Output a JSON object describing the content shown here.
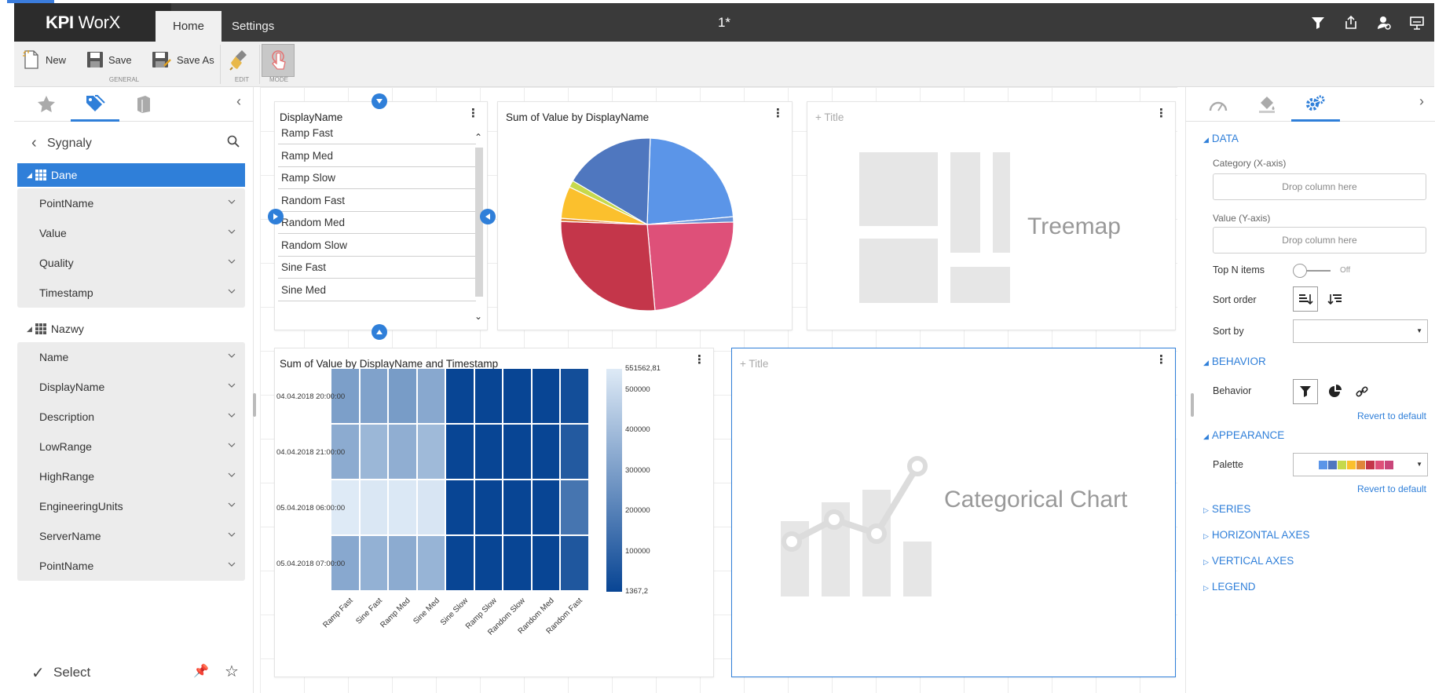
{
  "app": {
    "logo_bold": "KPI",
    "logo_rest": " WorX",
    "document_title": "1*"
  },
  "tabs": [
    {
      "label": "Home"
    },
    {
      "label": "Settings"
    }
  ],
  "ribbon": {
    "new_label": "New",
    "save_label": "Save",
    "save_as_label": "Save As",
    "group_general": "GENERAL",
    "group_edit": "EDIT",
    "group_mode": "MODE"
  },
  "left_panel": {
    "title": "Sygnaly",
    "groups": [
      {
        "label": "Dane",
        "fields": [
          "PointName",
          "Value",
          "Quality",
          "Timestamp"
        ]
      },
      {
        "label": "Nazwy",
        "fields": [
          "Name",
          "DisplayName",
          "Description",
          "LowRange",
          "HighRange",
          "EngineeringUnits",
          "ServerName",
          "PointName"
        ]
      }
    ],
    "footer_label": "Select"
  },
  "list_tile": {
    "header": "DisplayName",
    "rows": [
      "Ramp Fast",
      "Ramp Med",
      "Ramp Slow",
      "Random Fast",
      "Random Med",
      "Random Slow",
      "Sine Fast",
      "Sine Med"
    ]
  },
  "pie_tile": {
    "title": "Sum of Value by DisplayName"
  },
  "treemap_tile": {
    "title_placeholder": "+ Title",
    "label": "Treemap"
  },
  "heatmap_tile": {
    "title": "Sum of Value by DisplayName and Timestamp"
  },
  "categorical_tile": {
    "title_placeholder": "+ Title",
    "label": "Categorical Chart"
  },
  "chart_data": [
    {
      "type": "pie",
      "title": "Sum of Value by DisplayName",
      "slices": [
        {
          "value": 23,
          "color": "#5b95e8"
        },
        {
          "value": 1,
          "color": "#6a94d8"
        },
        {
          "value": 24,
          "color": "#de5079"
        },
        {
          "value": 27,
          "color": "#c4364a"
        },
        {
          "value": 0.6,
          "color": "#e0873a"
        },
        {
          "value": 6,
          "color": "#fbc02d"
        },
        {
          "value": 1.3,
          "color": "#c6d94c"
        },
        {
          "value": 17.1,
          "color": "#4f77bf"
        }
      ]
    },
    {
      "type": "heatmap",
      "title": "Sum of Value by DisplayName and Timestamp",
      "x": [
        "Ramp Fast",
        "Sine Fast",
        "Ramp Med",
        "Sine Med",
        "Sine Slow",
        "Ramp Slow",
        "Random Slow",
        "Random Med",
        "Random Fast"
      ],
      "y": [
        "04.04.2018 20:00:00",
        "04.04.2018 21:00:00",
        "05.04.2018 06:00:00",
        "05.04.2018 07:00:00"
      ],
      "values": [
        [
          300000,
          310000,
          290000,
          330000,
          1367.2,
          1367.2,
          1367.2,
          1367.2,
          30000
        ],
        [
          340000,
          380000,
          350000,
          390000,
          1367.2,
          1367.2,
          1367.2,
          1367.2,
          70000
        ],
        [
          551562.81,
          540000,
          545000,
          535000,
          1367.2,
          1367.2,
          1367.2,
          1367.2,
          160000
        ],
        [
          330000,
          360000,
          340000,
          370000,
          1367.2,
          1367.2,
          1367.2,
          1367.2,
          60000
        ]
      ],
      "color_scale": {
        "min": 1367.2,
        "max": 551562.81,
        "ticks": [
          "551562,81",
          "500000",
          "400000",
          "300000",
          "200000",
          "100000",
          "1367,2"
        ],
        "tick_values": [
          551562.81,
          500000,
          400000,
          300000,
          200000,
          100000,
          1367.2
        ]
      }
    }
  ],
  "right_panel": {
    "sections": {
      "data": "DATA",
      "behavior": "BEHAVIOR",
      "appearance": "APPEARANCE",
      "series": "SERIES",
      "horizontal_axes": "HORIZONTAL AXES",
      "vertical_axes": "VERTICAL AXES",
      "legend": "LEGEND"
    },
    "category_label": "Category (X-axis)",
    "value_label": "Value (Y-axis)",
    "drop_placeholder": "Drop column here",
    "top_n_label": "Top N items",
    "top_n_state": "Off",
    "sort_order_label": "Sort order",
    "sort_by_label": "Sort by",
    "behavior_label": "Behavior",
    "revert_label": "Revert to default",
    "palette_label": "Palette",
    "palette_colors": [
      "#5b95e8",
      "#4f77bf",
      "#c6d94c",
      "#fbc02d",
      "#e0873a",
      "#c4364a",
      "#de5079",
      "#c9467a"
    ]
  }
}
